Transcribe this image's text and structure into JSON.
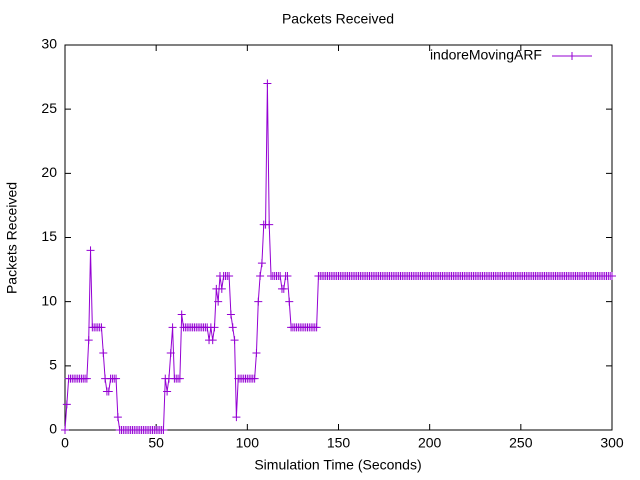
{
  "chart_data": {
    "type": "line",
    "title": "Packets Received",
    "x_label": "Simulation Time (Seconds)",
    "y_label": "Packets Received",
    "x": [
      0,
      1,
      2,
      3,
      4,
      5,
      6,
      7,
      8,
      9,
      10,
      11,
      12,
      13,
      14,
      15,
      16,
      17,
      18,
      19,
      20,
      21,
      22,
      23,
      24,
      25,
      26,
      27,
      28,
      29,
      30,
      31,
      32,
      33,
      34,
      35,
      36,
      37,
      38,
      39,
      40,
      41,
      42,
      43,
      44,
      45,
      46,
      47,
      48,
      49,
      50,
      51,
      52,
      53,
      54,
      55,
      56,
      57,
      58,
      59,
      60,
      61,
      62,
      63,
      64,
      65,
      66,
      67,
      68,
      69,
      70,
      71,
      72,
      73,
      74,
      75,
      76,
      77,
      78,
      79,
      80,
      81,
      82,
      83,
      84,
      85,
      86,
      87,
      88,
      89,
      90,
      91,
      92,
      93,
      94,
      95,
      96,
      97,
      98,
      99,
      100,
      101,
      102,
      103,
      104,
      105,
      106,
      107,
      108,
      109,
      110,
      111,
      112,
      113,
      114,
      115,
      116,
      117,
      118,
      119,
      120,
      121,
      122,
      123,
      124,
      125,
      126,
      127,
      128,
      129,
      130,
      131,
      132,
      133,
      134,
      135,
      136,
      137,
      138,
      139,
      140,
      141,
      142,
      143,
      144,
      145,
      146,
      147,
      148,
      149,
      150,
      151,
      152,
      153,
      154,
      155,
      156,
      157,
      158,
      159,
      160,
      161,
      162,
      163,
      164,
      165,
      166,
      167,
      168,
      169,
      170,
      171,
      172,
      173,
      174,
      175,
      176,
      177,
      178,
      179,
      180,
      181,
      182,
      183,
      184,
      185,
      186,
      187,
      188,
      189,
      190,
      191,
      192,
      193,
      194,
      195,
      196,
      197,
      198,
      199,
      200,
      201,
      202,
      203,
      204,
      205,
      206,
      207,
      208,
      209,
      210,
      211,
      212,
      213,
      214,
      215,
      216,
      217,
      218,
      219,
      220,
      221,
      222,
      223,
      224,
      225,
      226,
      227,
      228,
      229,
      230,
      231,
      232,
      233,
      234,
      235,
      236,
      237,
      238,
      239,
      240,
      241,
      242,
      243,
      244,
      245,
      246,
      247,
      248,
      249,
      250,
      251,
      252,
      253,
      254,
      255,
      256,
      257,
      258,
      259,
      260,
      261,
      262,
      263,
      264,
      265,
      266,
      267,
      268,
      269,
      270,
      271,
      272,
      273,
      274,
      275,
      276,
      277,
      278,
      279,
      280,
      281,
      282,
      283,
      284,
      285,
      286,
      287,
      288,
      289,
      290,
      291,
      292,
      293,
      294,
      295,
      296,
      297,
      298,
      299,
      300
    ],
    "series": [
      {
        "name": "indoreMovingARF",
        "color": "#9400d3",
        "values": [
          0,
          2,
          4,
          4,
          4,
          4,
          4,
          4,
          4,
          4,
          4,
          4,
          4,
          7,
          14,
          8,
          8,
          8,
          8,
          8,
          8,
          6,
          4,
          3,
          3,
          4,
          4,
          4,
          4,
          1,
          0,
          0,
          0,
          0,
          0,
          0,
          0,
          0,
          0,
          0,
          0,
          0,
          0,
          0,
          0,
          0,
          0,
          0,
          0,
          0,
          0,
          0,
          0,
          0,
          0,
          4,
          3,
          4,
          6,
          8,
          4,
          4,
          4,
          4,
          9,
          8,
          8,
          8,
          8,
          8,
          8,
          8,
          8,
          8,
          8,
          8,
          8,
          8,
          8,
          7,
          8,
          7,
          8,
          11,
          10,
          12,
          11,
          12,
          12,
          12,
          12,
          9,
          8,
          7,
          1,
          4,
          4,
          4,
          4,
          4,
          4,
          4,
          4,
          4,
          4,
          6,
          10,
          12,
          13,
          16,
          16,
          27,
          16,
          12,
          12,
          12,
          12,
          12,
          12,
          11,
          11,
          12,
          12,
          10,
          8,
          8,
          8,
          8,
          8,
          8,
          8,
          8,
          8,
          8,
          8,
          8,
          8,
          8,
          8,
          12,
          12,
          12,
          12,
          12,
          12,
          12,
          12,
          12,
          12,
          12,
          12,
          12,
          12,
          12,
          12,
          12,
          12,
          12,
          12,
          12,
          12,
          12,
          12,
          12,
          12,
          12,
          12,
          12,
          12,
          12,
          12,
          12,
          12,
          12,
          12,
          12,
          12,
          12,
          12,
          12,
          12,
          12,
          12,
          12,
          12,
          12,
          12,
          12,
          12,
          12,
          12,
          12,
          12,
          12,
          12,
          12,
          12,
          12,
          12,
          12,
          12,
          12,
          12,
          12,
          12,
          12,
          12,
          12,
          12,
          12,
          12,
          12,
          12,
          12,
          12,
          12,
          12,
          12,
          12,
          12,
          12,
          12,
          12,
          12,
          12,
          12,
          12,
          12,
          12,
          12,
          12,
          12,
          12,
          12,
          12,
          12,
          12,
          12,
          12,
          12,
          12,
          12,
          12,
          12,
          12,
          12,
          12,
          12,
          12,
          12,
          12,
          12,
          12,
          12,
          12,
          12,
          12,
          12,
          12,
          12,
          12,
          12,
          12,
          12,
          12,
          12,
          12,
          12,
          12,
          12,
          12,
          12,
          12,
          12,
          12,
          12,
          12,
          12,
          12,
          12,
          12,
          12,
          12,
          12,
          12,
          12,
          12,
          12,
          12,
          12,
          12,
          12,
          12,
          12,
          12,
          12,
          12,
          12,
          12,
          12,
          12
        ]
      }
    ],
    "xlim": [
      0,
      300
    ],
    "xticks": [
      0,
      50,
      100,
      150,
      200,
      250,
      300
    ],
    "ylim": [
      0,
      30
    ],
    "yticks": [
      0,
      5,
      10,
      15,
      20,
      25,
      30
    ],
    "grid": false,
    "legend": "top-right"
  }
}
